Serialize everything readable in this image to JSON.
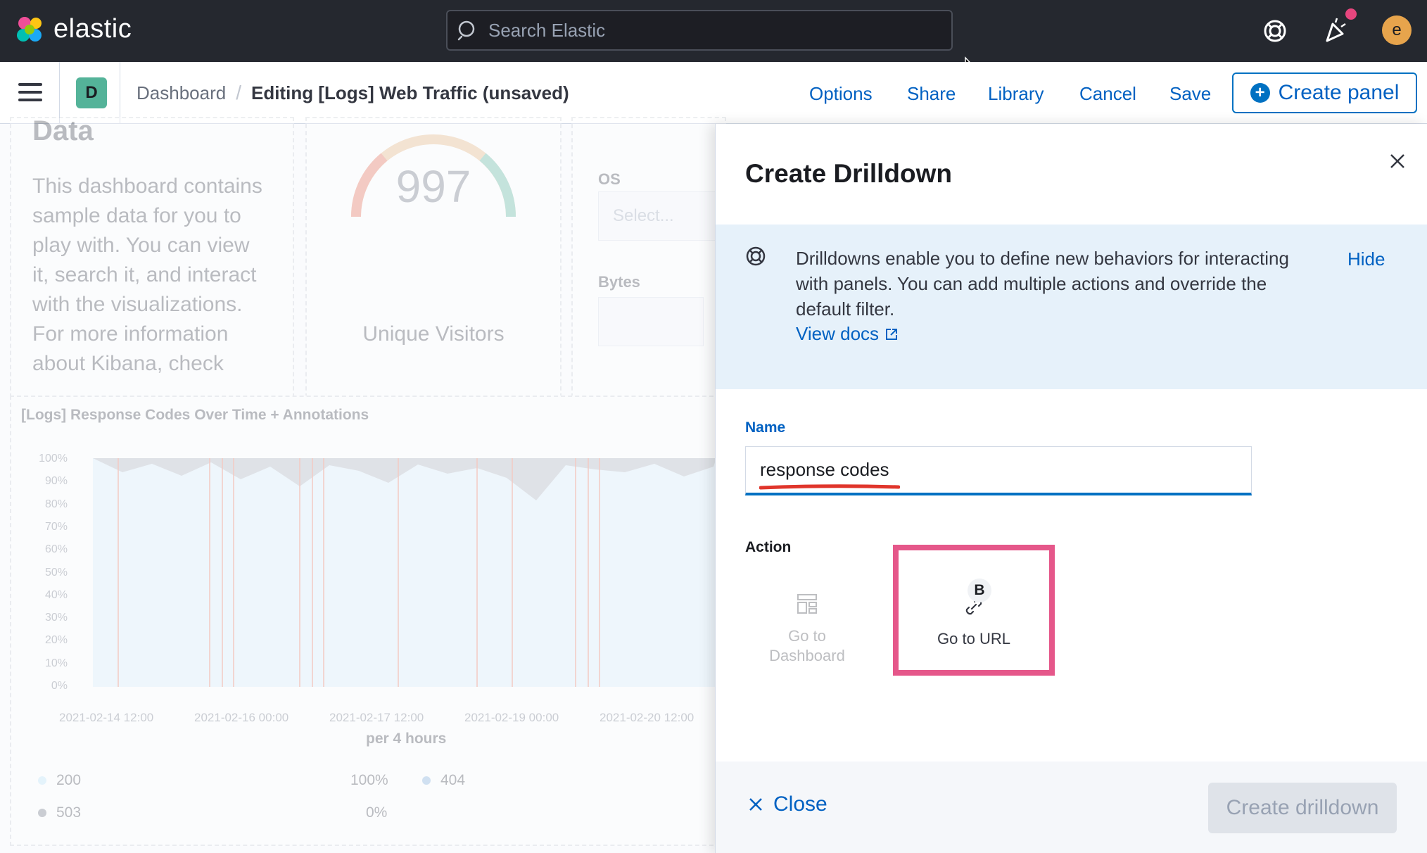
{
  "topbar": {
    "brand": "elastic",
    "search_placeholder": "Search Elastic",
    "avatar_initial": "e"
  },
  "subbar": {
    "space_initial": "D",
    "breadcrumb_root": "Dashboard",
    "breadcrumb_current": "Editing [Logs] Web Traffic (unsaved)",
    "nav": [
      "Options",
      "Share",
      "Library",
      "Cancel",
      "Save"
    ],
    "create_panel": "Create panel"
  },
  "dashboard": {
    "markdown_title": "Data",
    "markdown_text": "This dashboard contains sample data for you to play with. You can view it, search it, and interact with the visualizations. For more information about Kibana, check",
    "gauge_value": "997",
    "gauge_label": "Unique Visitors",
    "controls": {
      "os_label": "OS",
      "os_placeholder": "Select...",
      "bytes_label": "Bytes"
    },
    "chart_title": "[Logs] Response Codes Over Time + Annotations",
    "y_ticks": [
      "100%",
      "90%",
      "80%",
      "70%",
      "60%",
      "50%",
      "40%",
      "30%",
      "20%",
      "10%",
      "0%"
    ],
    "x_ticks": [
      "2021-02-14 12:00",
      "2021-02-16 00:00",
      "2021-02-17 12:00",
      "2021-02-19 00:00",
      "2021-02-20 12:00"
    ],
    "x_label": "per 4 hours",
    "legend": [
      {
        "name": "200",
        "value": "100%",
        "color": "#b9e3f9"
      },
      {
        "name": "404",
        "value": "",
        "color": "#79aad9"
      },
      {
        "name": "503",
        "value": "0%",
        "color": "#69707d"
      }
    ]
  },
  "flyout": {
    "title": "Create Drilldown",
    "callout_text": "Drilldowns enable you to define new behaviors for interacting with panels. You can add multiple actions and override the default filter.",
    "callout_hide": "Hide",
    "view_docs": "View docs",
    "name_label": "Name",
    "name_value": "response codes",
    "action_label": "Action",
    "actions": [
      {
        "label": "Go to Dashboard",
        "icon": "dashboard-icon"
      },
      {
        "label": "Go to URL",
        "icon": "link-icon",
        "badge": "B"
      }
    ],
    "close_label": "Close",
    "create_label": "Create drilldown"
  },
  "colors": {
    "accent": "#0071c2",
    "highlight": "#e5578a",
    "header_bg": "#25282f"
  }
}
